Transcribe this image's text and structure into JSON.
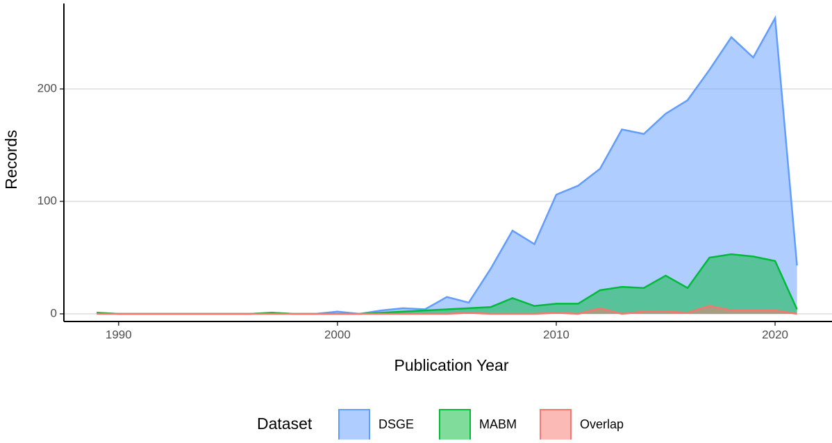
{
  "chart_data": {
    "type": "area",
    "x_label": "Publication Year",
    "y_label": "Records",
    "legend_title": "Dataset",
    "x": [
      1989,
      1990,
      1991,
      1992,
      1993,
      1994,
      1995,
      1996,
      1997,
      1998,
      1999,
      2000,
      2001,
      2002,
      2003,
      2004,
      2005,
      2006,
      2007,
      2008,
      2009,
      2010,
      2011,
      2012,
      2013,
      2014,
      2015,
      2016,
      2017,
      2018,
      2019,
      2020,
      2021
    ],
    "series": [
      {
        "name": "DSGE",
        "color": "#619cff",
        "values": [
          1,
          0,
          0,
          0,
          0,
          0,
          0,
          0,
          1,
          0,
          0,
          2,
          0,
          3,
          5,
          4,
          15,
          10,
          40,
          74,
          62,
          106,
          114,
          129,
          164,
          160,
          178,
          190,
          217,
          246,
          228,
          263,
          43
        ]
      },
      {
        "name": "MABM",
        "color": "#00ba38",
        "values": [
          1,
          0,
          0,
          0,
          0,
          0,
          0,
          0,
          1,
          0,
          0,
          0,
          0,
          1,
          2,
          3,
          4,
          5,
          6,
          14,
          7,
          9,
          9,
          21,
          24,
          23,
          34,
          23,
          50,
          53,
          51,
          47,
          4
        ]
      },
      {
        "name": "Overlap",
        "color": "#f8766d",
        "values": [
          0,
          0,
          0,
          0,
          0,
          0,
          0,
          0,
          0,
          0,
          0,
          0,
          0,
          0,
          0,
          0,
          0,
          1,
          0,
          0,
          0,
          1,
          0,
          5,
          0,
          2,
          2,
          1,
          7,
          3,
          3,
          3,
          0
        ]
      }
    ],
    "xlim": [
      1987.5,
      2022.6
    ],
    "xticks": [
      1990,
      2000,
      2010,
      2020
    ],
    "ylim": [
      -6.8,
      276
    ],
    "yticks": [
      0,
      100,
      200
    ],
    "grid": true,
    "legend_position": "bottom"
  }
}
